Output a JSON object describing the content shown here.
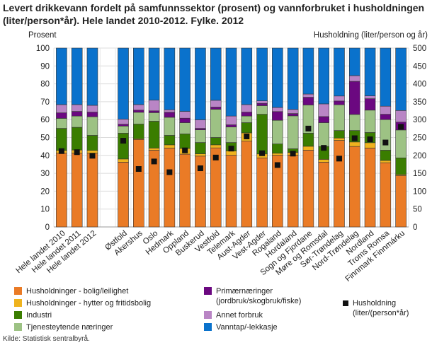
{
  "title": "Levert drikkevann fordelt på samfunnssektor (prosent) og vannforbruket i husholdningen (liter/person*år). Hele landet 2010-2012. Fylke. 2012",
  "source": "Kilde: Statistisk sentralbyrå.",
  "chart_data": {
    "type": "bar",
    "stacked": true,
    "title": "Levert drikkevann fordelt på samfunnssektor (prosent) og vannforbruket i husholdningen (liter/person*år). Hele landet 2010-2012. Fylke. 2012",
    "ylabel": "Prosent",
    "ylabel_right": "Husholdning (liter/person og år)",
    "ylim": [
      0,
      100
    ],
    "ylim_right": [
      0,
      500
    ],
    "yticks": [
      "0",
      "10",
      "20",
      "30",
      "40",
      "50",
      "60",
      "70",
      "80",
      "90",
      "100"
    ],
    "yticks_right": [
      "0",
      "50",
      "100",
      "150",
      "200",
      "250",
      "300",
      "350",
      "400",
      "450",
      "500"
    ],
    "grid": true,
    "legend_position": "bottom",
    "categories": [
      "Hele landet 2010",
      "Hele landet 2011",
      "Hele landet 2012",
      "Østfold",
      "Akershus",
      "Oslo",
      "Hedmark",
      "Oppland",
      "Buskerud",
      "Vestfold",
      "Telemark",
      "Aust-Agder",
      "Vest-Agder",
      "Rogaland",
      "Hordaland",
      "Sogn og Fjordane",
      "Møre og Romsdal",
      "Sør-Trøndelag",
      "Nord-Trøndelag",
      "Nordland",
      "Troms Romsa",
      "Finnmark Finnmárku"
    ],
    "series": [
      {
        "name": "Husholdninger - bolig/leilighet",
        "color": "#ea7b26",
        "values": [
          41.2,
          41.2,
          41.2,
          36.2,
          48.9,
          42.9,
          44.1,
          40.7,
          39.6,
          44.2,
          40.1,
          48.0,
          38.6,
          40.1,
          40.1,
          42.9,
          36.2,
          48.4,
          45.0,
          44.1,
          35.9,
          28.7
        ]
      },
      {
        "name": "Husholdninger - hytter og fritidsbolig",
        "color": "#efb31e",
        "values": [
          1.6,
          1.8,
          1.6,
          1.8,
          0.4,
          1.2,
          1.8,
          3.2,
          1.3,
          1.7,
          2.4,
          4.6,
          2.2,
          1.1,
          1.6,
          2.2,
          1.6,
          1.3,
          2.5,
          3.0,
          1.3,
          0.6
        ]
      },
      {
        "name": "Industri",
        "color": "#3a7d00",
        "values": [
          12.3,
          12.7,
          8.4,
          14.4,
          8.2,
          15.0,
          5.3,
          8.1,
          6.3,
          4.1,
          4.7,
          5.7,
          22.2,
          5.2,
          2.0,
          7.3,
          7.2,
          4.2,
          6.4,
          5.7,
          5.7,
          9.3
        ]
      },
      {
        "name": "Tjenesteytende næringer",
        "color": "#9dc284",
        "values": [
          5.6,
          6.3,
          10.4,
          4.0,
          6.6,
          4.8,
          10.1,
          6.3,
          7.1,
          15.8,
          8.7,
          3.7,
          4.8,
          13.2,
          18.4,
          15.8,
          13.3,
          14.4,
          9.0,
          12.5,
          17.1,
          15.6
        ]
      },
      {
        "name": "Primærnæringer (jordbruk/skogbruk/fiske)",
        "color": "#6b0880",
        "values": [
          3.1,
          2.6,
          2.6,
          1.0,
          1.2,
          1.0,
          2.8,
          2.5,
          0.8,
          1.2,
          1.2,
          2.2,
          1.3,
          4.9,
          1.3,
          4.3,
          3.4,
          2.1,
          18.5,
          6.4,
          3.0,
          4.4
        ]
      },
      {
        "name": "Annet forbruk",
        "color": "#b985c5",
        "values": [
          4.6,
          3.8,
          3.8,
          2.9,
          3.1,
          6.0,
          1.4,
          3.8,
          4.8,
          3.8,
          4.9,
          4.2,
          1.4,
          2.3,
          2.3,
          1.8,
          7.1,
          2.8,
          3.2,
          1.6,
          4.5,
          6.5
        ]
      },
      {
        "name": "Vanntap/-lekkasje",
        "color": "#0a72cc",
        "values": [
          31.6,
          31.6,
          32.0,
          39.7,
          31.6,
          29.1,
          34.5,
          35.4,
          40.1,
          29.2,
          38.0,
          31.6,
          29.5,
          33.2,
          34.3,
          25.7,
          31.2,
          26.8,
          15.4,
          26.7,
          32.5,
          34.9
        ]
      }
    ],
    "marker_series": {
      "name": "Husholdning (liter/(person*år)",
      "axis": "right",
      "color": "#111111",
      "values": [
        212,
        209,
        199,
        241,
        162,
        183,
        153,
        214,
        164,
        194,
        219,
        253,
        206,
        173,
        205,
        275,
        221,
        191,
        248,
        245,
        236,
        280
      ]
    }
  },
  "legend": [
    "Husholdninger - bolig/leilighet",
    "Husholdninger - hytter og fritidsbolig",
    "Industri",
    "Tjenesteytende næringer",
    "Primærnæringer\n(jordbruk/skogbruk/fiske)",
    "Annet forbruk",
    "Vanntap/-lekkasje",
    "Husholdning\n(liter/(person*år)"
  ]
}
